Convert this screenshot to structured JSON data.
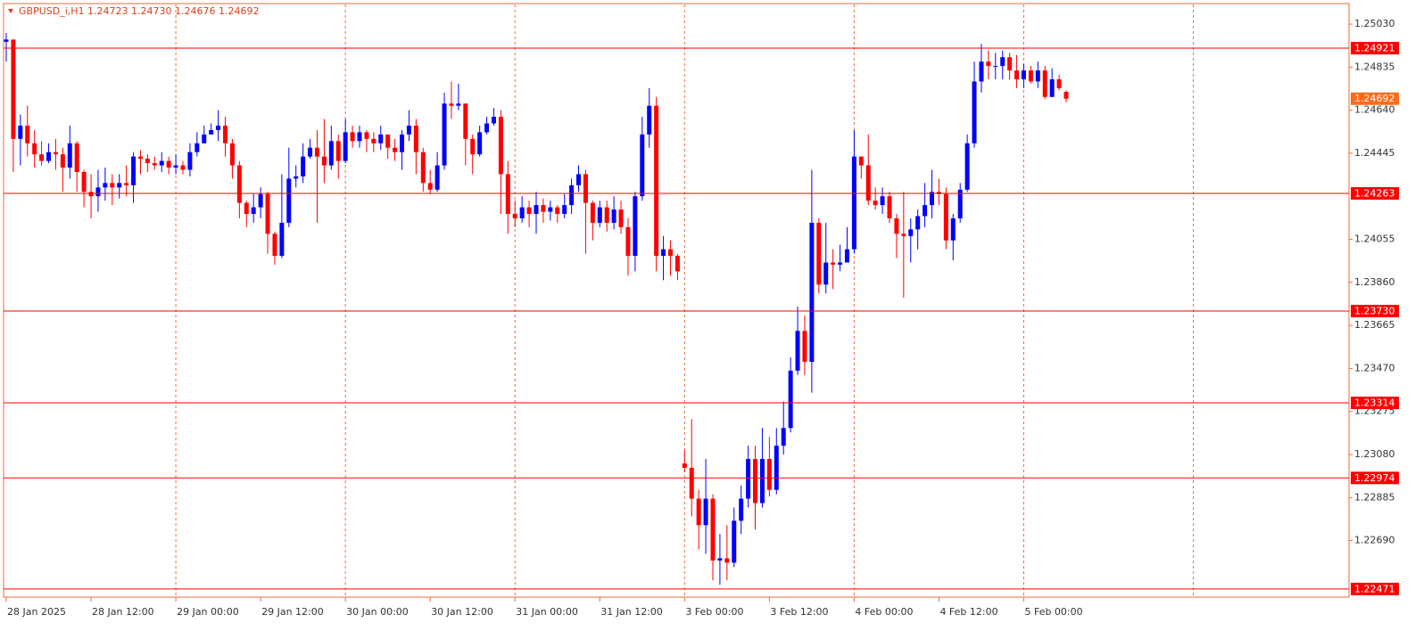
{
  "chart_data": {
    "type": "candlestick",
    "title": "GBPUSD_i,H1  1.24723 1.24730 1.24676 1.24692",
    "categories": [
      "28 Jan 2025",
      null,
      null,
      null,
      null,
      null,
      null,
      null,
      null,
      null,
      null,
      null,
      "28 Jan 12:00",
      null,
      null,
      null,
      null,
      null,
      null,
      null,
      null,
      null,
      null,
      null,
      "29 Jan 00:00",
      null,
      null,
      null,
      null,
      null,
      null,
      null,
      null,
      null,
      null,
      null,
      "29 Jan 12:00",
      null,
      null,
      null,
      null,
      null,
      null,
      null,
      null,
      null,
      null,
      null,
      "30 Jan 00:00",
      null,
      null,
      null,
      null,
      null,
      null,
      null,
      null,
      null,
      null,
      null,
      "30 Jan 12:00",
      null,
      null,
      null,
      null,
      null,
      null,
      null,
      null,
      null,
      null,
      null,
      "31 Jan 00:00",
      null,
      null,
      null,
      null,
      null,
      null,
      null,
      null,
      null,
      null,
      null,
      "31 Jan 12:00",
      null,
      null,
      null,
      null,
      null,
      null,
      null,
      null,
      null,
      null,
      null,
      "3 Feb 00:00",
      null,
      null,
      null,
      null,
      null,
      null,
      null,
      null,
      null,
      null,
      null,
      "3 Feb 12:00",
      null,
      null,
      null,
      null,
      null,
      null,
      null,
      null,
      null,
      null,
      null,
      "4 Feb 00:00",
      null,
      null,
      null,
      null,
      null,
      null,
      null,
      null,
      null,
      null,
      null,
      "4 Feb 12:00",
      null,
      null,
      null,
      null,
      null,
      null,
      null,
      null,
      null,
      null,
      null,
      "5 Feb 00:00",
      null,
      null,
      null,
      null,
      null,
      null
    ],
    "open": [
      1.2495,
      1.2496,
      1.2451,
      1.2457,
      1.2449,
      1.2444,
      1.2441,
      1.2445,
      1.2444,
      1.2438,
      1.2449,
      1.2436,
      1.2427,
      1.2425,
      1.2429,
      1.2431,
      1.2429,
      1.2431,
      1.243,
      1.2443,
      1.2442,
      1.244,
      1.2439,
      1.2441,
      1.2438,
      1.2439,
      1.2437,
      1.2445,
      1.2449,
      1.2453,
      1.2455,
      1.2457,
      1.2449,
      1.2439,
      1.2422,
      1.2417,
      1.242,
      1.2426,
      1.2408,
      1.2398,
      1.2413,
      1.2433,
      1.2434,
      1.2443,
      1.2447,
      1.2443,
      1.2439,
      1.245,
      1.2441,
      1.2454,
      1.245,
      1.2454,
      1.2451,
      1.2449,
      1.2453,
      1.2447,
      1.2445,
      1.2453,
      1.2457,
      1.2445,
      1.2431,
      1.2428,
      1.2439,
      1.2467,
      1.2466,
      1.2467,
      1.2451,
      1.2444,
      1.2454,
      1.2458,
      1.2461,
      1.2435,
      1.2417,
      1.2415,
      1.242,
      1.2417,
      1.2421,
      1.2418,
      1.242,
      1.2417,
      1.2421,
      1.243,
      1.2435,
      1.2422,
      1.2413,
      1.242,
      1.2413,
      1.2419,
      1.2411,
      1.2398,
      1.2425,
      1.2453,
      1.2466,
      1.2398,
      1.2401,
      1.2398,
      1.2304,
      1.2302,
      1.2288,
      1.2276,
      1.2288,
      1.226,
      1.2261,
      1.2259,
      1.2278,
      1.2288,
      1.2306,
      1.2286,
      1.2306,
      1.2292,
      1.2312,
      1.232,
      1.2346,
      1.2364,
      1.235,
      1.2413,
      1.2385,
      1.2395,
      1.2394,
      1.2395,
      1.2401,
      1.2443,
      1.2439,
      1.2423,
      1.2421,
      1.2425,
      1.2415,
      1.2408,
      1.2407,
      1.241,
      1.2416,
      1.2421,
      1.2427,
      1.2426,
      1.2405,
      1.2415,
      1.2428,
      1.2449,
      1.2477,
      1.2486,
      1.2484,
      1.2484,
      1.2488,
      1.2482,
      1.2478,
      1.2482,
      1.2477,
      1.2482,
      1.247,
      1.2478,
      1.24723
    ],
    "high": [
      1.2499,
      1.2496,
      1.2462,
      1.2466,
      1.2455,
      1.245,
      1.2449,
      1.2451,
      1.2447,
      1.2457,
      1.245,
      1.2437,
      1.2435,
      1.2437,
      1.2438,
      1.2435,
      1.2435,
      1.2439,
      1.2445,
      1.2446,
      1.2444,
      1.2443,
      1.2445,
      1.2443,
      1.2444,
      1.2441,
      1.2449,
      1.2454,
      1.2457,
      1.2458,
      1.2464,
      1.2461,
      1.2451,
      1.2441,
      1.2423,
      1.2426,
      1.2429,
      1.2427,
      1.2409,
      1.2435,
      1.2447,
      1.2439,
      1.2449,
      1.2451,
      1.2455,
      1.246,
      1.2457,
      1.2453,
      1.246,
      1.2457,
      1.2457,
      1.2455,
      1.2454,
      1.2457,
      1.2453,
      1.2451,
      1.2455,
      1.2464,
      1.246,
      1.2447,
      1.2437,
      1.2445,
      1.2472,
      1.2477,
      1.2476,
      1.2467,
      1.2453,
      1.2457,
      1.2461,
      1.2465,
      1.2464,
      1.2441,
      1.2423,
      1.2425,
      1.2423,
      1.2427,
      1.2424,
      1.2423,
      1.2421,
      1.2426,
      1.2433,
      1.2439,
      1.2437,
      1.2423,
      1.2423,
      1.2423,
      1.2425,
      1.2423,
      1.2415,
      1.2427,
      1.2461,
      1.2474,
      1.247,
      1.2407,
      1.2405,
      1.2399,
      1.231,
      1.2324,
      1.2292,
      1.2306,
      1.229,
      1.2272,
      1.2276,
      1.2284,
      1.2294,
      1.2312,
      1.2312,
      1.232,
      1.2316,
      1.232,
      1.2332,
      1.2352,
      1.2375,
      1.2371,
      1.2437,
      1.2415,
      1.2413,
      1.2401,
      1.2403,
      1.2411,
      1.2455,
      1.2443,
      1.2453,
      1.2429,
      1.2429,
      1.2427,
      1.2417,
      1.2427,
      1.2415,
      1.2419,
      1.2431,
      1.2437,
      1.2433,
      1.2429,
      1.2417,
      1.2431,
      1.2453,
      1.2486,
      1.2494,
      1.2491,
      1.249,
      1.2491,
      1.249,
      1.2489,
      1.2485,
      1.2484,
      1.2486,
      1.2484,
      1.2483,
      1.248,
      1.2473
    ],
    "low": [
      1.2486,
      1.2436,
      1.2439,
      1.2443,
      1.2438,
      1.2439,
      1.244,
      1.2437,
      1.2427,
      1.2433,
      1.2427,
      1.242,
      1.2415,
      1.2418,
      1.2423,
      1.2421,
      1.2424,
      1.2425,
      1.2422,
      1.2435,
      1.2436,
      1.2437,
      1.2436,
      1.2435,
      1.2435,
      1.2435,
      1.2434,
      1.2443,
      1.2449,
      1.2453,
      1.245,
      1.2443,
      1.2433,
      1.2415,
      1.2411,
      1.2413,
      1.2415,
      1.2399,
      1.2394,
      1.2397,
      1.2411,
      1.2429,
      1.2431,
      1.2442,
      1.2413,
      1.2431,
      1.2437,
      1.2433,
      1.244,
      1.2447,
      1.2447,
      1.2445,
      1.2445,
      1.2446,
      1.2442,
      1.2441,
      1.2437,
      1.245,
      1.2435,
      1.2427,
      1.2426,
      1.2427,
      1.2437,
      1.246,
      1.2464,
      1.2439,
      1.2435,
      1.2443,
      1.2453,
      1.2457,
      1.2417,
      1.2408,
      1.2411,
      1.2413,
      1.2411,
      1.2408,
      1.2413,
      1.2414,
      1.2413,
      1.2415,
      1.2417,
      1.2427,
      1.2399,
      1.2405,
      1.2411,
      1.2409,
      1.241,
      1.2408,
      1.2389,
      1.2391,
      1.2423,
      1.2447,
      1.2391,
      1.2387,
      1.2389,
      1.2387,
      1.23,
      1.228,
      1.2265,
      1.2263,
      1.2251,
      1.2249,
      1.2251,
      1.2257,
      1.2272,
      1.2284,
      1.2274,
      1.2284,
      1.2289,
      1.229,
      1.2308,
      1.2318,
      1.2344,
      1.2344,
      1.2336,
      1.2381,
      1.2381,
      1.2383,
      1.2391,
      1.2395,
      1.2399,
      1.2433,
      1.2421,
      1.2419,
      1.2417,
      1.2413,
      1.2397,
      1.2379,
      1.2395,
      1.2401,
      1.2411,
      1.2415,
      1.2421,
      1.2401,
      1.2396,
      1.2413,
      1.2427,
      1.2447,
      1.2472,
      1.2478,
      1.2478,
      1.2478,
      1.2478,
      1.2474,
      1.2474,
      1.2476,
      1.2474,
      1.2469,
      1.247,
      1.2473,
      1.24676
    ],
    "close": [
      1.2496,
      1.2451,
      1.2457,
      1.2449,
      1.2444,
      1.2441,
      1.2445,
      1.2444,
      1.2438,
      1.2449,
      1.2436,
      1.2427,
      1.2425,
      1.2429,
      1.2431,
      1.2429,
      1.2431,
      1.243,
      1.2443,
      1.2442,
      1.244,
      1.2439,
      1.2441,
      1.2438,
      1.2439,
      1.2437,
      1.2445,
      1.2449,
      1.2453,
      1.2455,
      1.2457,
      1.2449,
      1.2439,
      1.2422,
      1.2417,
      1.242,
      1.2426,
      1.2408,
      1.2398,
      1.2413,
      1.2433,
      1.2434,
      1.2443,
      1.2447,
      1.2443,
      1.2439,
      1.245,
      1.2441,
      1.2454,
      1.245,
      1.2454,
      1.2451,
      1.2449,
      1.2453,
      1.2447,
      1.2445,
      1.2453,
      1.2457,
      1.2445,
      1.2431,
      1.2428,
      1.2439,
      1.2467,
      1.2466,
      1.2467,
      1.2451,
      1.2444,
      1.2454,
      1.2458,
      1.2461,
      1.2435,
      1.2417,
      1.2415,
      1.242,
      1.2417,
      1.2421,
      1.2418,
      1.242,
      1.2417,
      1.2421,
      1.243,
      1.2435,
      1.2422,
      1.2413,
      1.242,
      1.2413,
      1.2419,
      1.2411,
      1.2398,
      1.2425,
      1.2453,
      1.2466,
      1.2398,
      1.2401,
      1.2398,
      1.2391,
      1.2302,
      1.2288,
      1.2276,
      1.2288,
      1.226,
      1.2261,
      1.2259,
      1.2278,
      1.2288,
      1.2306,
      1.2286,
      1.2306,
      1.2292,
      1.2312,
      1.232,
      1.2346,
      1.2364,
      1.235,
      1.2413,
      1.2385,
      1.2395,
      1.2394,
      1.2395,
      1.2401,
      1.2443,
      1.2439,
      1.2423,
      1.2421,
      1.2425,
      1.2415,
      1.2408,
      1.2407,
      1.241,
      1.2416,
      1.2421,
      1.2427,
      1.2426,
      1.2405,
      1.2415,
      1.2428,
      1.2449,
      1.2477,
      1.2486,
      1.2484,
      1.2484,
      1.2488,
      1.2482,
      1.2478,
      1.2482,
      1.2477,
      1.2482,
      1.247,
      1.2478,
      1.2474,
      1.24692
    ],
    "up_color": "#0000ff",
    "down_color": "#ff0000",
    "level_color": "#ff0000",
    "price_color": "#ff6a1a",
    "levels": [
      1.24921,
      1.24263,
      1.2373,
      1.23314,
      1.22974,
      1.22471
    ],
    "level_labels": [
      "1.24921",
      "1.24263",
      "1.23730",
      "1.23314",
      "1.22974",
      "1.22471"
    ],
    "ylim": [
      1.22434,
      1.25123
    ],
    "yticks": [
      {
        "value": 1.2503,
        "label": "1.25030"
      },
      1.24835,
      {
        "value": 1.2464,
        "label": "1.24640"
      },
      1.24445,
      1.24055,
      {
        "value": 1.2386,
        "label": "1.23860"
      },
      1.23665,
      {
        "value": 1.2347,
        "label": "1.23470"
      },
      1.23275,
      {
        "value": 1.2308,
        "label": "1.23080"
      },
      1.22885,
      {
        "value": 1.2269,
        "label": "1.22690"
      }
    ],
    "grid": true
  }
}
